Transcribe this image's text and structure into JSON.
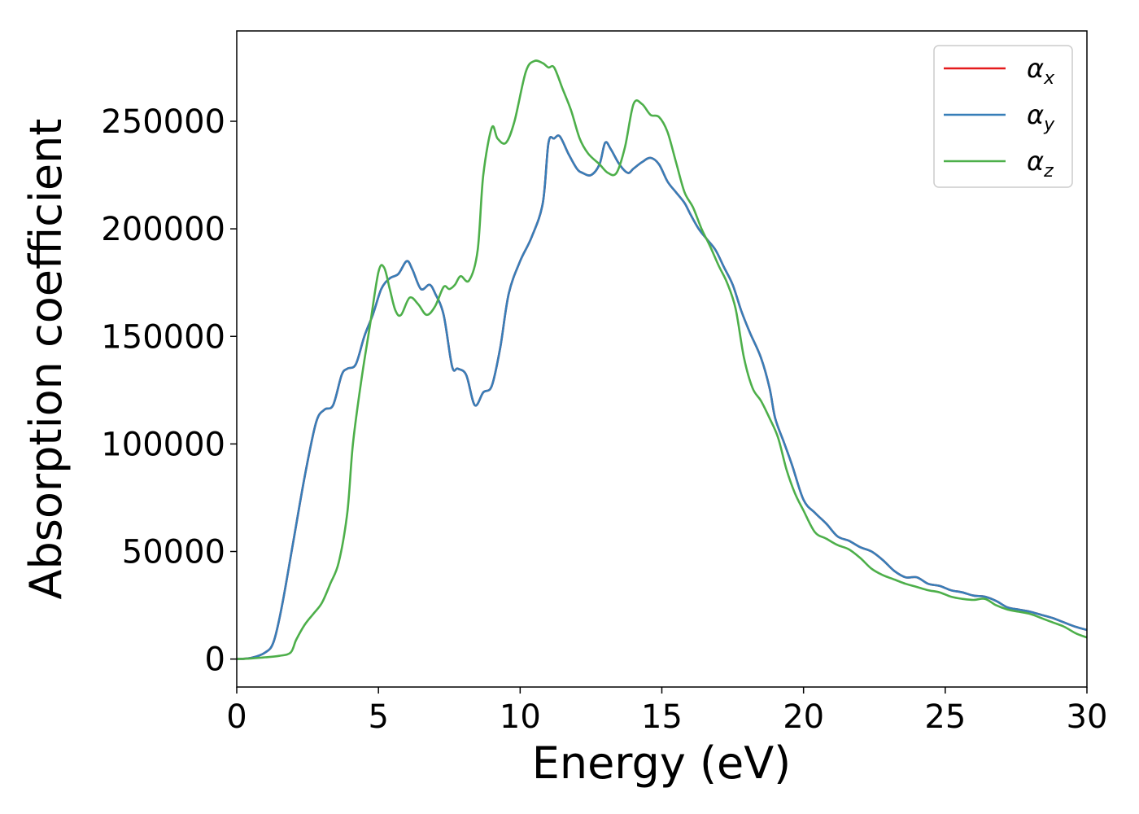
{
  "chart_data": {
    "type": "line",
    "title": "",
    "xlabel": "Energy (eV)",
    "ylabel": "Absorption coefficient",
    "xlim": [
      0,
      30
    ],
    "ylim": [
      -13000,
      292000
    ],
    "xticks": [
      0,
      5,
      10,
      15,
      20,
      25,
      30
    ],
    "yticks": [
      0,
      50000,
      100000,
      150000,
      200000,
      250000
    ],
    "grid": false,
    "legend_position": "top-right",
    "series": [
      {
        "name": "αx",
        "legend_symbol": "α",
        "legend_subscript": "x",
        "color": "#e41a1c",
        "x": [
          0,
          0.5,
          1.0,
          1.3,
          1.6,
          2.0,
          2.4,
          2.8,
          3.1,
          3.4,
          3.7,
          3.9,
          4.2,
          4.5,
          4.8,
          5.1,
          5.4,
          5.7,
          6.0,
          6.2,
          6.5,
          6.8,
          7.0,
          7.3,
          7.6,
          7.8,
          8.1,
          8.4,
          8.7,
          9.0,
          9.3,
          9.6,
          10.0,
          10.4,
          10.8,
          11.0,
          11.2,
          11.4,
          11.7,
          12.0,
          12.2,
          12.5,
          12.8,
          13.0,
          13.2,
          13.5,
          13.8,
          14.0,
          14.3,
          14.6,
          14.9,
          15.2,
          15.5,
          15.8,
          16.0,
          16.3,
          16.6,
          16.9,
          17.2,
          17.5,
          17.8,
          18.1,
          18.5,
          18.8,
          19.0,
          19.3,
          19.6,
          20.0,
          20.4,
          20.8,
          21.2,
          21.6,
          22.0,
          22.4,
          22.8,
          23.2,
          23.6,
          24.0,
          24.4,
          24.8,
          25.2,
          25.6,
          26.0,
          26.4,
          26.8,
          27.2,
          27.6,
          28.0,
          28.4,
          28.8,
          29.2,
          29.6,
          30.0
        ],
        "y": [
          0,
          500,
          3000,
          8000,
          25000,
          55000,
          85000,
          110000,
          116000,
          118000,
          132000,
          135000,
          137000,
          150000,
          160000,
          172000,
          177000,
          179000,
          185000,
          181000,
          172000,
          174000,
          170000,
          160000,
          136000,
          135000,
          132000,
          118000,
          124000,
          127000,
          145000,
          170000,
          185000,
          196000,
          212000,
          240000,
          242000,
          243000,
          235000,
          228000,
          226000,
          225000,
          230000,
          240000,
          237000,
          230000,
          226000,
          228000,
          231000,
          233000,
          230000,
          222000,
          217000,
          212000,
          207000,
          200000,
          195000,
          190000,
          182000,
          174000,
          162000,
          152000,
          140000,
          126000,
          112000,
          101000,
          90000,
          74000,
          68000,
          63000,
          57000,
          55000,
          52000,
          50000,
          46000,
          41000,
          38000,
          38000,
          35000,
          34000,
          32000,
          31000,
          29500,
          29000,
          27000,
          24000,
          23000,
          22000,
          20500,
          19000,
          17000,
          15000,
          13500
        ]
      },
      {
        "name": "αy",
        "legend_symbol": "α",
        "legend_subscript": "y",
        "color": "#377eb8",
        "x": [
          0,
          0.5,
          1.0,
          1.3,
          1.6,
          2.0,
          2.4,
          2.8,
          3.1,
          3.4,
          3.7,
          3.9,
          4.2,
          4.5,
          4.8,
          5.1,
          5.4,
          5.7,
          6.0,
          6.2,
          6.5,
          6.8,
          7.0,
          7.3,
          7.6,
          7.8,
          8.1,
          8.4,
          8.7,
          9.0,
          9.3,
          9.6,
          10.0,
          10.4,
          10.8,
          11.0,
          11.2,
          11.4,
          11.7,
          12.0,
          12.2,
          12.5,
          12.8,
          13.0,
          13.2,
          13.5,
          13.8,
          14.0,
          14.3,
          14.6,
          14.9,
          15.2,
          15.5,
          15.8,
          16.0,
          16.3,
          16.6,
          16.9,
          17.2,
          17.5,
          17.8,
          18.1,
          18.5,
          18.8,
          19.0,
          19.3,
          19.6,
          20.0,
          20.4,
          20.8,
          21.2,
          21.6,
          22.0,
          22.4,
          22.8,
          23.2,
          23.6,
          24.0,
          24.4,
          24.8,
          25.2,
          25.6,
          26.0,
          26.4,
          26.8,
          27.2,
          27.6,
          28.0,
          28.4,
          28.8,
          29.2,
          29.6,
          30.0
        ],
        "y": [
          0,
          500,
          3000,
          8000,
          25000,
          55000,
          85000,
          110000,
          116000,
          118000,
          132000,
          135000,
          137000,
          150000,
          160000,
          172000,
          177000,
          179000,
          185000,
          181000,
          172000,
          174000,
          170000,
          160000,
          136000,
          135000,
          132000,
          118000,
          124000,
          127000,
          145000,
          170000,
          185000,
          196000,
          212000,
          240000,
          242000,
          243000,
          235000,
          228000,
          226000,
          225000,
          230000,
          240000,
          237000,
          230000,
          226000,
          228000,
          231000,
          233000,
          230000,
          222000,
          217000,
          212000,
          207000,
          200000,
          195000,
          190000,
          182000,
          174000,
          162000,
          152000,
          140000,
          126000,
          112000,
          101000,
          90000,
          74000,
          68000,
          63000,
          57000,
          55000,
          52000,
          50000,
          46000,
          41000,
          38000,
          38000,
          35000,
          34000,
          32000,
          31000,
          29500,
          29000,
          27000,
          24000,
          23000,
          22000,
          20500,
          19000,
          17000,
          15000,
          13500
        ]
      },
      {
        "name": "αz",
        "legend_symbol": "α",
        "legend_subscript": "z",
        "color": "#4daf4a",
        "x": [
          0,
          0.5,
          1.0,
          1.5,
          1.9,
          2.1,
          2.4,
          2.7,
          3.0,
          3.3,
          3.6,
          3.9,
          4.1,
          4.4,
          4.7,
          5.0,
          5.2,
          5.4,
          5.6,
          5.8,
          6.1,
          6.4,
          6.7,
          7.0,
          7.3,
          7.5,
          7.7,
          7.9,
          8.2,
          8.5,
          8.7,
          9.0,
          9.2,
          9.5,
          9.8,
          10.2,
          10.5,
          10.8,
          11.0,
          11.2,
          11.5,
          11.8,
          12.1,
          12.4,
          12.8,
          13.1,
          13.4,
          13.7,
          14.0,
          14.3,
          14.6,
          14.9,
          15.2,
          15.5,
          15.8,
          16.1,
          16.4,
          16.7,
          17.0,
          17.3,
          17.6,
          17.9,
          18.2,
          18.5,
          18.8,
          19.1,
          19.4,
          19.7,
          20.0,
          20.4,
          20.8,
          21.2,
          21.6,
          22.0,
          22.4,
          22.8,
          23.2,
          23.6,
          24.0,
          24.4,
          24.8,
          25.2,
          25.6,
          26.0,
          26.4,
          26.8,
          27.2,
          27.6,
          28.0,
          28.4,
          28.8,
          29.2,
          29.6,
          30.0
        ],
        "y": [
          0,
          300,
          800,
          1500,
          3000,
          9000,
          16000,
          21000,
          26000,
          35000,
          45000,
          68000,
          100000,
          130000,
          155000,
          180000,
          182000,
          172000,
          162000,
          160000,
          168000,
          165000,
          160000,
          164000,
          173000,
          172000,
          174000,
          178000,
          176000,
          190000,
          225000,
          247000,
          242000,
          240000,
          250000,
          273000,
          278000,
          277000,
          275000,
          275000,
          265000,
          255000,
          242000,
          235000,
          230000,
          226000,
          226000,
          238000,
          258000,
          258000,
          253000,
          252000,
          245000,
          231000,
          217000,
          210000,
          200000,
          192000,
          183000,
          175000,
          163000,
          140000,
          126000,
          120000,
          112000,
          103000,
          88000,
          77000,
          69000,
          59000,
          56000,
          53000,
          51000,
          47000,
          42000,
          39000,
          37000,
          35000,
          33500,
          32000,
          31000,
          29000,
          28000,
          27500,
          28000,
          25000,
          23000,
          22000,
          21000,
          19000,
          17000,
          15000,
          12000,
          10000
        ]
      }
    ]
  }
}
